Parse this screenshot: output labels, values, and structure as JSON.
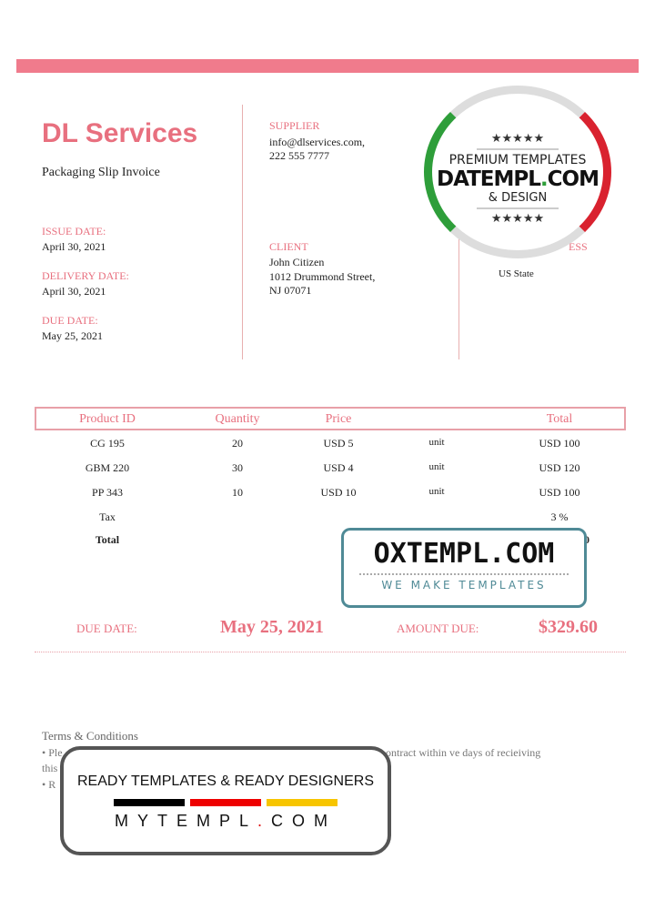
{
  "company": {
    "name": "DL Services",
    "subtitle": "Packaging Slip  Invoice"
  },
  "dates": {
    "issue_label": "ISSUE DATE:",
    "issue": "April 30, 2021",
    "delivery_label": "DELIVERY DATE:",
    "delivery": "April 30, 2021",
    "due_label": "DUE DATE:",
    "due": "May 25, 2021"
  },
  "supplier": {
    "label": "SUPPLIER",
    "email": "info@dlservices.com,",
    "phone": "222 555 7777"
  },
  "client": {
    "label": "CLIENT",
    "name": "John Citizen",
    "street": "1012 Drummond Street,",
    "city": "NJ 07071"
  },
  "address": {
    "label": "ADDRESS",
    "partial_label": "ESS",
    "state": "US State"
  },
  "table": {
    "headers": [
      "Product ID",
      "Quantity",
      "Price",
      "",
      "Total"
    ],
    "rows": [
      [
        "CG 195",
        "20",
        "USD 5",
        "unit",
        "USD 100"
      ],
      [
        "GBM 220",
        "30",
        "USD 4",
        "unit",
        "USD 120"
      ],
      [
        "PP 343",
        "10",
        "USD 10",
        "unit",
        "USD 100"
      ]
    ],
    "tax_label": "Tax",
    "tax": "3 %",
    "total_label": "Total",
    "total_partial": "0"
  },
  "summary": {
    "due_label": "DUE DATE:",
    "due": "May 25, 2021",
    "amount_label": "AMOUNT DUE:",
    "amount": "$329.60"
  },
  "terms": {
    "title": "Terms & Conditions",
    "line1_start": "• Ple",
    "line1_end": "ontract  within ve days of recieiving",
    "line2": "this",
    "line3": "• R"
  },
  "watermarks": {
    "datempl": {
      "top": "PREMIUM TEMPLATES",
      "brand": "DATEMPL",
      "dot": ".",
      "com": "COM",
      "sub": "& DESIGN",
      "stars": "★★★★★"
    },
    "oxtempl": {
      "brand": "OXTEMPL.COM",
      "tagline": "WE MAKE TEMPLATES"
    },
    "mytempl": {
      "tagline": "READY TEMPLATES & READY DESIGNERS",
      "brand": "MYTEMPL",
      "dot": ".",
      "com": "COM"
    }
  },
  "colors": {
    "accent": "#e8707f",
    "green": "#2e9e3a",
    "red": "#d9222f",
    "teal": "#4f8a96"
  }
}
